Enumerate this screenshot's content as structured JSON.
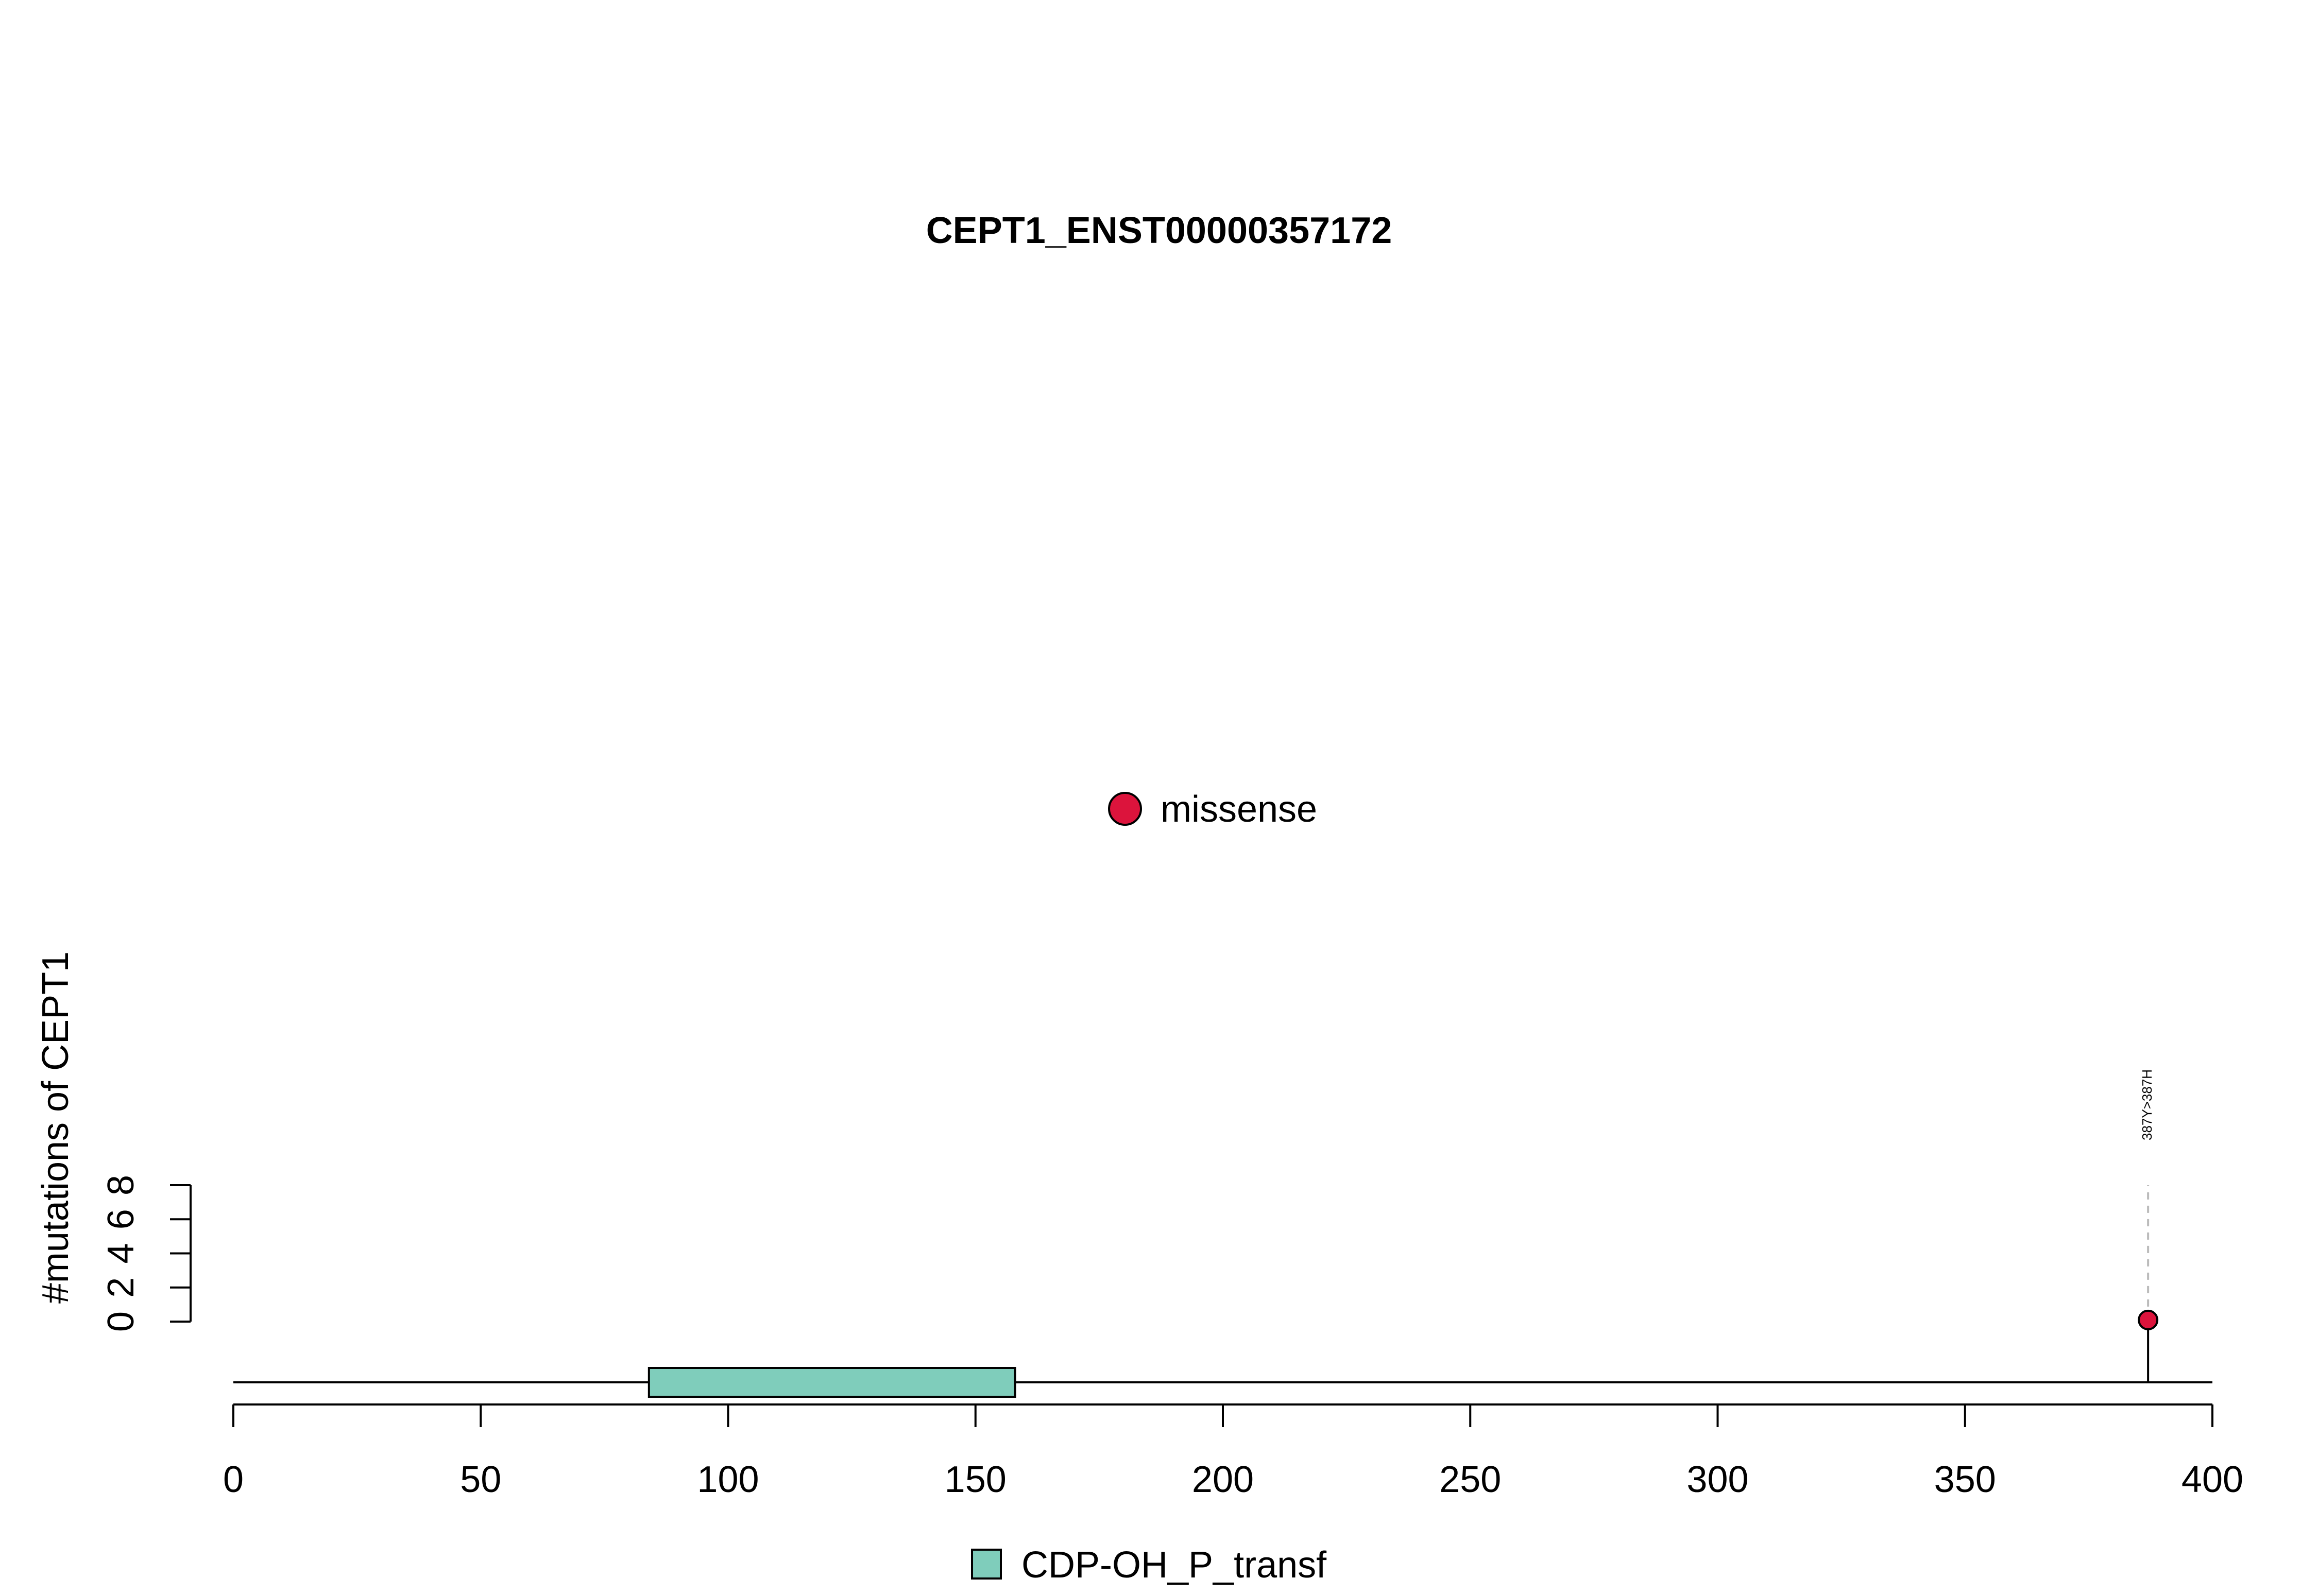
{
  "chart_data": {
    "type": "lollipop",
    "title": "CEPT1_ENST00000357172",
    "ylabel": "#mutations of CEPT1",
    "xlim": [
      0,
      400
    ],
    "x_ticks": [
      0,
      50,
      100,
      150,
      200,
      250,
      300,
      350,
      400
    ],
    "ylim": [
      0,
      8
    ],
    "y_ticks": [
      0,
      2,
      4,
      6,
      8
    ],
    "protein_length": 400,
    "legend_top": {
      "label": "missense",
      "color": "#DC143C"
    },
    "domains": [
      {
        "name": "CDP-OH_P_transf",
        "start": 84,
        "end": 158,
        "color": "#7FCDBB"
      }
    ],
    "mutations": [
      {
        "position": 387,
        "count": 1,
        "type": "missense",
        "label": "387Y>387H",
        "color": "#DC143C"
      }
    ]
  }
}
